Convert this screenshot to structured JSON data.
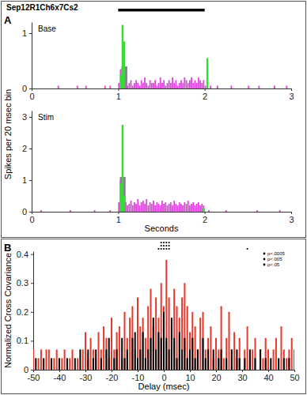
{
  "chart_data": [
    {
      "type": "bar",
      "panel": "A",
      "title": "Sep12R1Ch6x7Cs2",
      "stimulus": [
        1,
        2
      ],
      "ylabel": "Spikes per 20 msec bin",
      "label": "Base",
      "xlim": [
        0,
        3
      ],
      "xticks": [
        0,
        1,
        2,
        3
      ],
      "ylim": [
        0,
        1.2
      ],
      "yticks": [
        0,
        1
      ],
      "series": [
        {
          "color": "#8a7a94",
          "x": [
            1.04,
            1.06
          ],
          "values": [
            0.4,
            0.4
          ]
        },
        {
          "color": "#dd44dd",
          "x": [
            0.3,
            0.52,
            0.62,
            0.84,
            0.9,
            1,
            1.02,
            1.04,
            1.06,
            1.08,
            1.1,
            1.12,
            1.14,
            1.16,
            1.18,
            1.2,
            1.22,
            1.24,
            1.26,
            1.28,
            1.3,
            1.32,
            1.34,
            1.36,
            1.38,
            1.4,
            1.42,
            1.44,
            1.46,
            1.48,
            1.5,
            1.52,
            1.54,
            1.56,
            1.58,
            1.6,
            1.62,
            1.64,
            1.66,
            1.68,
            1.7,
            1.72,
            1.74,
            1.76,
            1.78,
            1.8,
            1.82,
            1.84,
            1.86,
            1.88,
            1.9,
            1.92,
            1.94,
            1.96,
            1.98,
            2,
            2.06,
            2.14,
            2.3,
            2.5,
            2.62,
            2.8,
            2.94
          ],
          "values": [
            0.05,
            0.05,
            0.05,
            0.05,
            0.05,
            0.1,
            0.35,
            0.4,
            0.35,
            0.1,
            0.05,
            0.1,
            0.15,
            0.05,
            0.1,
            0.15,
            0.1,
            0.05,
            0.15,
            0.1,
            0.2,
            0.1,
            0.05,
            0.15,
            0.1,
            0.1,
            0.15,
            0.05,
            0.1,
            0.2,
            0.1,
            0.15,
            0.05,
            0.1,
            0.15,
            0.1,
            0.2,
            0.1,
            0.15,
            0.05,
            0.1,
            0.15,
            0.1,
            0.2,
            0.15,
            0.1,
            0.15,
            0.2,
            0.1,
            0.15,
            0.1,
            0.2,
            0.15,
            0.1,
            0.15,
            0.05,
            0.05,
            0.05,
            0.05,
            0.05,
            0.05,
            0.05,
            0.05
          ]
        },
        {
          "color": "#33dd33",
          "x": [
            1.02,
            1.04,
            1.06,
            2.02
          ],
          "values": [
            0.25,
            1.15,
            0.85,
            0.55
          ]
        }
      ]
    },
    {
      "type": "bar",
      "label": "Stim",
      "xlabel": "Seconds",
      "xlim": [
        0,
        3
      ],
      "xticks": [
        0,
        1,
        2,
        3
      ],
      "ylim": [
        0,
        3.2
      ],
      "yticks": [
        0,
        1,
        2,
        3
      ],
      "series": [
        {
          "color": "#8a7a94",
          "x": [
            1.02,
            1.04
          ],
          "values": [
            1.1,
            1.1
          ]
        },
        {
          "color": "#dd44dd",
          "x": [
            0.1,
            0.44,
            0.72,
            0.9,
            1,
            1.02,
            1.04,
            1.06,
            1.08,
            1.1,
            1.12,
            1.14,
            1.16,
            1.18,
            1.2,
            1.22,
            1.24,
            1.26,
            1.28,
            1.3,
            1.32,
            1.34,
            1.36,
            1.38,
            1.4,
            1.42,
            1.44,
            1.46,
            1.48,
            1.5,
            1.52,
            1.54,
            1.56,
            1.58,
            1.6,
            1.62,
            1.64,
            1.66,
            1.68,
            1.7,
            1.72,
            1.74,
            1.76,
            1.78,
            1.8,
            1.82,
            1.84,
            1.86,
            1.88,
            1.9,
            1.92,
            1.94,
            1.96,
            1.98,
            2.04,
            2.24,
            2.6,
            2.86
          ],
          "values": [
            0.05,
            0.05,
            0.05,
            0.05,
            0.3,
            1.0,
            1.1,
            0.5,
            0.3,
            0.2,
            0.25,
            0.35,
            0.2,
            0.3,
            0.25,
            0.4,
            0.2,
            0.3,
            0.35,
            0.25,
            0.4,
            0.2,
            0.3,
            0.25,
            0.35,
            0.2,
            0.3,
            0.25,
            0.2,
            0.35,
            0.25,
            0.3,
            0.2,
            0.25,
            0.3,
            0.2,
            0.35,
            0.25,
            0.2,
            0.3,
            0.25,
            0.2,
            0.3,
            0.25,
            0.35,
            0.2,
            0.25,
            0.3,
            0.2,
            0.25,
            0.3,
            0.2,
            0.25,
            0.2,
            0.05,
            0.05,
            0.05,
            0.05
          ]
        },
        {
          "color": "#33dd33",
          "x": [
            1.02,
            1.04,
            1.06,
            1.98
          ],
          "values": [
            0.9,
            2.75,
            0.5,
            0.1
          ]
        }
      ]
    },
    {
      "type": "bar",
      "panel": "B",
      "ylabel": "Normalized Cross Covariance",
      "xlabel": "Delay (msec)",
      "xlim": [
        -50,
        50
      ],
      "xticks": [
        -50,
        -40,
        -30,
        -20,
        -10,
        0,
        10,
        20,
        30,
        40,
        50
      ],
      "ylim": [
        0,
        0.41
      ],
      "yticks": [
        0,
        0.1,
        0.2,
        0.3,
        0.4
      ],
      "x": [
        -50,
        -49,
        -48,
        -47,
        -46,
        -45,
        -44,
        -43,
        -42,
        -41,
        -40,
        -39,
        -38,
        -37,
        -36,
        -35,
        -34,
        -33,
        -32,
        -31,
        -30,
        -29,
        -28,
        -27,
        -26,
        -25,
        -24,
        -23,
        -22,
        -21,
        -20,
        -19,
        -18,
        -17,
        -16,
        -15,
        -14,
        -13,
        -12,
        -11,
        -10,
        -9,
        -8,
        -7,
        -6,
        -5,
        -4,
        -3,
        -2,
        -1,
        0,
        1,
        2,
        3,
        4,
        5,
        6,
        7,
        8,
        9,
        10,
        11,
        12,
        13,
        14,
        15,
        16,
        17,
        18,
        19,
        20,
        21,
        22,
        23,
        24,
        25,
        26,
        27,
        28,
        29,
        30,
        31,
        32,
        33,
        34,
        35,
        36,
        37,
        38,
        39,
        40,
        41,
        42,
        43,
        44,
        45,
        46,
        47,
        48,
        49,
        50
      ],
      "series": [
        {
          "color": "#e5392b",
          "values": [
            0.07,
            0,
            0.04,
            0.07,
            0,
            0.07,
            0.07,
            0,
            0.04,
            0.07,
            0,
            0.04,
            0.07,
            0,
            0.04,
            0.07,
            0,
            0.04,
            0,
            0.07,
            0.13,
            0.04,
            0.11,
            0.07,
            0.04,
            0.13,
            0.07,
            0.15,
            0.11,
            0.04,
            0.18,
            0.07,
            0.13,
            0.15,
            0.04,
            0.2,
            0.11,
            0.18,
            0.22,
            0.07,
            0.25,
            0.15,
            0.18,
            0.11,
            0.22,
            0.28,
            0.15,
            0.25,
            0.18,
            0.3,
            0.22,
            0.38,
            0.25,
            0.15,
            0.28,
            0.22,
            0.18,
            0.25,
            0.3,
            0.22,
            0.13,
            0.2,
            0.15,
            0.07,
            0.18,
            0.2,
            0.07,
            0.11,
            0.15,
            0.04,
            0.11,
            0.07,
            0.22,
            0.04,
            0.11,
            0.2,
            0.07,
            0.13,
            0.04,
            0.11,
            0,
            0.07,
            0.15,
            0.04,
            0.07,
            0.11,
            0,
            0.07,
            0.04,
            0.11,
            0.07,
            0,
            0.07,
            0.11,
            0,
            0.15,
            0.07,
            0.04,
            0.07,
            0.11,
            0.07
          ]
        },
        {
          "color": "#000000",
          "values": [
            0,
            0.04,
            0,
            0,
            0.04,
            0,
            0,
            0.04,
            0,
            0,
            0.04,
            0,
            0,
            0.04,
            0,
            0,
            0.04,
            0,
            0.07,
            0,
            0,
            0.07,
            0,
            0.04,
            0.07,
            0,
            0.04,
            0,
            0.07,
            0.11,
            0,
            0.04,
            0.07,
            0,
            0.11,
            0.04,
            0.07,
            0,
            0.11,
            0.13,
            0.04,
            0.07,
            0.13,
            0.04,
            0.07,
            0.11,
            0.18,
            0.07,
            0.13,
            0.11,
            0.2,
            0.11,
            0.07,
            0.18,
            0.11,
            0.04,
            0.13,
            0.07,
            0.11,
            0.04,
            0.07,
            0.11,
            0.04,
            0.07,
            0,
            0.11,
            0.04,
            0.07,
            0,
            0.07,
            0,
            0.04,
            0.07,
            0,
            0.04,
            0,
            0.07,
            0,
            0.07,
            0.04,
            0,
            0.04,
            0,
            0.07,
            0,
            0.04,
            0,
            0.07,
            0,
            0.04,
            0,
            0.04,
            0,
            0,
            0.04,
            0,
            0.04,
            0,
            0.04,
            0,
            0
          ]
        }
      ],
      "significance": [
        {
          "label": "p<.0005",
          "x": [
            -1,
            0,
            1,
            2
          ]
        },
        {
          "label": "p<.005",
          "x": [
            -1,
            0,
            1,
            2
          ]
        },
        {
          "label": "p<.05",
          "x": [
            -2,
            -1,
            0,
            1,
            2,
            32
          ]
        }
      ]
    }
  ]
}
